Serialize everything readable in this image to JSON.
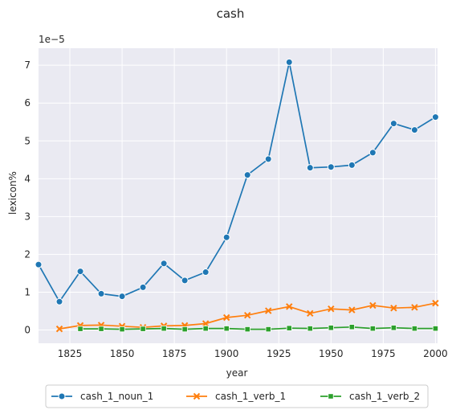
{
  "chart_data": {
    "type": "line",
    "title": "cash",
    "xlabel": "year",
    "ylabel": "lexicon%",
    "y_multiplier_label": "1e−5",
    "xlim": [
      1810,
      2001
    ],
    "ylim": [
      -0.35,
      7.45
    ],
    "x_ticks": [
      1825,
      1850,
      1875,
      1900,
      1925,
      1950,
      1975,
      2000
    ],
    "y_ticks": [
      0,
      1,
      2,
      3,
      4,
      5,
      6,
      7
    ],
    "grid": true,
    "legend_position": "bottom-center",
    "series": [
      {
        "name": "cash_1_noun_1",
        "color": "#1f77b4",
        "marker": "circle",
        "x": [
          1810,
          1820,
          1830,
          1840,
          1850,
          1860,
          1870,
          1880,
          1890,
          1900,
          1910,
          1920,
          1930,
          1940,
          1950,
          1960,
          1970,
          1980,
          1990,
          2000
        ],
        "y": [
          1.73,
          0.75,
          1.55,
          0.96,
          0.89,
          1.13,
          1.76,
          1.31,
          1.53,
          2.45,
          4.1,
          4.52,
          7.08,
          4.29,
          4.31,
          4.36,
          4.69,
          5.46,
          5.29,
          5.63
        ]
      },
      {
        "name": "cash_1_verb_1",
        "color": "#ff7f0e",
        "marker": "x",
        "x": [
          1820,
          1830,
          1840,
          1850,
          1860,
          1870,
          1880,
          1890,
          1900,
          1910,
          1920,
          1930,
          1940,
          1950,
          1960,
          1970,
          1980,
          1990,
          2000
        ],
        "y": [
          0.03,
          0.12,
          0.13,
          0.1,
          0.07,
          0.11,
          0.12,
          0.17,
          0.33,
          0.39,
          0.51,
          0.62,
          0.44,
          0.56,
          0.53,
          0.65,
          0.58,
          0.6,
          0.71
        ]
      },
      {
        "name": "cash_1_verb_2",
        "color": "#2ca02c",
        "marker": "square",
        "x": [
          1830,
          1840,
          1850,
          1860,
          1870,
          1880,
          1890,
          1900,
          1910,
          1920,
          1930,
          1940,
          1950,
          1960,
          1970,
          1980,
          1990,
          2000
        ],
        "y": [
          0.03,
          0.03,
          0.02,
          0.03,
          0.04,
          0.02,
          0.04,
          0.04,
          0.02,
          0.02,
          0.05,
          0.04,
          0.06,
          0.08,
          0.04,
          0.06,
          0.04,
          0.04
        ]
      }
    ]
  }
}
